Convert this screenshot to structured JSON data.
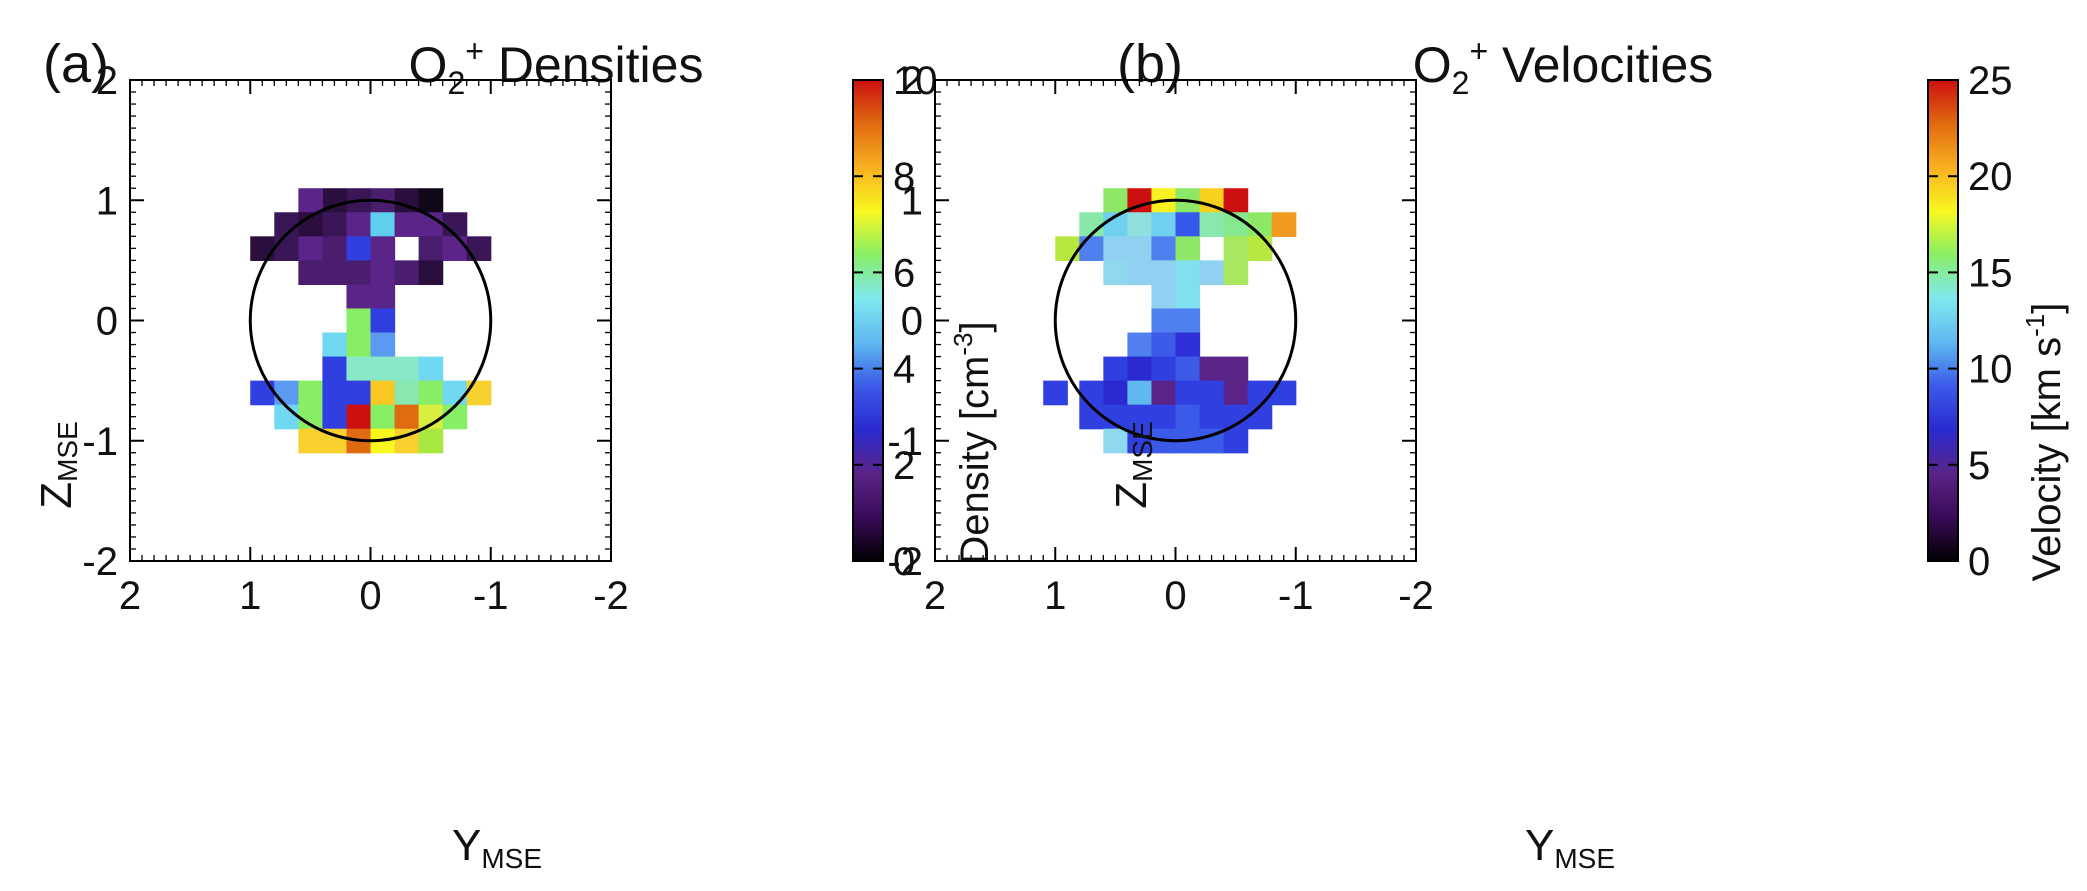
{
  "panels": [
    {
      "label": "(a)",
      "title": {
        "base": "O",
        "sub": "2",
        "sup": "+",
        "rest": " Densities"
      },
      "chart_data": {
        "type": "heatmap",
        "xlabel": {
          "base": "Y",
          "sub": "MSE"
        },
        "ylabel": {
          "base": "Z",
          "sub": "MSE"
        },
        "xlim": [
          2,
          -2
        ],
        "ylim": [
          -2,
          2
        ],
        "xticks": [
          2,
          1,
          0,
          -1,
          -2
        ],
        "xtick_labels": [
          "2",
          "1",
          "0",
          "-1",
          "-2"
        ],
        "yticks": [
          2,
          1,
          0,
          -1,
          -2
        ],
        "ytick_labels": [
          "2",
          "1",
          "0",
          "-1",
          "-2"
        ],
        "circle": {
          "center": [
            0,
            0
          ],
          "radius": 1
        },
        "cell_size": 0.2,
        "cells": [
          [
            1.0,
            -0.1,
            0.8,
            "#4a1d6e"
          ],
          [
            1.0,
            -0.3,
            0.9,
            "#2a0e3e"
          ],
          [
            1.0,
            -0.5,
            0.6,
            "#100818"
          ],
          [
            1.0,
            0.1,
            0.7,
            "#3a1656"
          ],
          [
            1.0,
            0.3,
            0.9,
            "#2a0e3e"
          ],
          [
            1.0,
            0.5,
            1.0,
            "#5a2488"
          ],
          [
            0.8,
            0.7,
            0.9,
            "#3a1656"
          ],
          [
            0.8,
            0.5,
            0.9,
            "#2a0e3e"
          ],
          [
            0.8,
            0.3,
            0.9,
            "#3a1656"
          ],
          [
            0.8,
            0.1,
            1.0,
            "#5a2488"
          ],
          [
            0.8,
            -0.1,
            3.8,
            "#5fcff0"
          ],
          [
            0.8,
            -0.3,
            1.0,
            "#5a2488"
          ],
          [
            0.8,
            -0.5,
            1.0,
            "#5a2488"
          ],
          [
            0.8,
            -0.7,
            0.9,
            "#3a1656"
          ],
          [
            0.6,
            0.9,
            0.8,
            "#2a0e3e"
          ],
          [
            0.6,
            0.7,
            0.9,
            "#3a1656"
          ],
          [
            0.6,
            0.5,
            1.0,
            "#5a2488"
          ],
          [
            0.6,
            0.3,
            1.0,
            "#4a1d6e"
          ],
          [
            0.6,
            0.1,
            2.2,
            "#3040e0"
          ],
          [
            0.6,
            -0.1,
            1.0,
            "#5a2488"
          ],
          [
            0.6,
            -0.5,
            1.0,
            "#4a1d6e"
          ],
          [
            0.6,
            -0.7,
            1.0,
            "#5a2488"
          ],
          [
            0.6,
            -0.9,
            0.9,
            "#3a1656"
          ],
          [
            0.4,
            0.5,
            1.0,
            "#4a1d6e"
          ],
          [
            0.4,
            0.3,
            1.0,
            "#4a1d6e"
          ],
          [
            0.4,
            0.1,
            1.0,
            "#4a1d6e"
          ],
          [
            0.4,
            -0.1,
            1.0,
            "#5a2488"
          ],
          [
            0.4,
            -0.3,
            1.0,
            "#4a1d6e"
          ],
          [
            0.4,
            -0.5,
            0.8,
            "#2a0e3e"
          ],
          [
            0.2,
            0.1,
            1.0,
            "#5a2488"
          ],
          [
            0.2,
            -0.1,
            1.0,
            "#5a2488"
          ],
          [
            0.0,
            0.1,
            5.0,
            "#88ee66"
          ],
          [
            0.0,
            -0.1,
            2.2,
            "#3040e0"
          ],
          [
            -0.2,
            0.3,
            4.0,
            "#70d8f0"
          ],
          [
            -0.2,
            0.1,
            5.0,
            "#88ee66"
          ],
          [
            -0.2,
            -0.1,
            3.0,
            "#5a9af0"
          ],
          [
            -0.4,
            0.3,
            2.2,
            "#3040e0"
          ],
          [
            -0.4,
            0.1,
            4.3,
            "#88e8c8"
          ],
          [
            -0.4,
            -0.1,
            4.3,
            "#88e8c8"
          ],
          [
            -0.4,
            -0.3,
            4.3,
            "#88e8c8"
          ],
          [
            -0.4,
            -0.5,
            4.0,
            "#70d8f0"
          ],
          [
            -0.6,
            0.9,
            2.2,
            "#3040e0"
          ],
          [
            -0.6,
            0.7,
            3.0,
            "#5a9af0"
          ],
          [
            -0.6,
            0.5,
            5.0,
            "#88ee66"
          ],
          [
            -0.6,
            0.3,
            2.2,
            "#3040e0"
          ],
          [
            -0.6,
            0.1,
            2.2,
            "#3040e0"
          ],
          [
            -0.6,
            -0.1,
            7.3,
            "#f8c820"
          ],
          [
            -0.6,
            -0.3,
            4.5,
            "#88e8b0"
          ],
          [
            -0.6,
            -0.5,
            5.0,
            "#88ee66"
          ],
          [
            -0.6,
            -0.7,
            4.0,
            "#70d8f0"
          ],
          [
            -0.6,
            -0.9,
            7.0,
            "#f8d030"
          ],
          [
            -0.8,
            0.7,
            4.0,
            "#70d8f0"
          ],
          [
            -0.8,
            0.5,
            5.0,
            "#88ee66"
          ],
          [
            -0.8,
            0.3,
            2.2,
            "#3040e0"
          ],
          [
            -0.8,
            0.1,
            9.6,
            "#cc1010"
          ],
          [
            -0.8,
            -0.1,
            5.0,
            "#88ee66"
          ],
          [
            -0.8,
            -0.3,
            8.2,
            "#e06a10"
          ],
          [
            -0.8,
            -0.5,
            6.2,
            "#d8ee40"
          ],
          [
            -0.8,
            -0.7,
            5.0,
            "#88ee66"
          ],
          [
            -1.0,
            0.5,
            7.0,
            "#f8d030"
          ],
          [
            -1.0,
            0.3,
            7.0,
            "#f8d030"
          ],
          [
            -1.0,
            0.1,
            8.2,
            "#e06a10"
          ],
          [
            -1.0,
            -0.1,
            7.6,
            "#f8f820"
          ],
          [
            -1.0,
            -0.3,
            7.0,
            "#f8d030"
          ],
          [
            -1.0,
            -0.5,
            5.5,
            "#a8e840"
          ]
        ],
        "colorbar": {
          "label": "Density [cm",
          "label_sup": "-3",
          "label_end": "]",
          "min": 0,
          "max": 10,
          "ticks": [
            0,
            2,
            4,
            6,
            8,
            10
          ],
          "tick_labels": [
            "0",
            "2",
            "4",
            "6",
            "8",
            "10"
          ]
        }
      }
    },
    {
      "label": "(b)",
      "title": {
        "base": "O",
        "sub": "2",
        "sup": "+",
        "rest": " Velocities"
      },
      "chart_data": {
        "type": "heatmap",
        "xlabel": {
          "base": "Y",
          "sub": "MSE"
        },
        "ylabel": {
          "base": "Z",
          "sub": "MSE"
        },
        "xlim": [
          2,
          -2
        ],
        "ylim": [
          -2,
          2
        ],
        "xticks": [
          2,
          1,
          0,
          -1,
          -2
        ],
        "xtick_labels": [
          "2",
          "1",
          "0",
          "-1",
          "-2"
        ],
        "yticks": [
          2,
          1,
          0,
          -1,
          -2
        ],
        "ytick_labels": [
          "2",
          "1",
          "0",
          "-1",
          "-2"
        ],
        "circle": {
          "center": [
            0,
            0
          ],
          "radius": 1
        },
        "cell_size": 0.2,
        "cells": [
          [
            1.0,
            0.5,
            14,
            "#8de868"
          ],
          [
            1.0,
            0.3,
            24,
            "#cc1010"
          ],
          [
            1.0,
            0.1,
            18,
            "#f8f020"
          ],
          [
            1.0,
            -0.1,
            15,
            "#8de868"
          ],
          [
            1.0,
            -0.3,
            19,
            "#f8d020"
          ],
          [
            1.0,
            -0.5,
            24,
            "#cc1010"
          ],
          [
            0.8,
            0.7,
            13,
            "#88e8a8"
          ],
          [
            0.8,
            0.5,
            9,
            "#70d0f0"
          ],
          [
            0.8,
            0.3,
            10,
            "#90e0e0"
          ],
          [
            0.8,
            0.1,
            9,
            "#70d0f0"
          ],
          [
            0.8,
            -0.1,
            6,
            "#3558e8"
          ],
          [
            0.8,
            -0.3,
            11,
            "#88e8b0"
          ],
          [
            0.8,
            -0.5,
            12,
            "#88e890"
          ],
          [
            0.8,
            -0.7,
            14,
            "#8de868"
          ],
          [
            0.8,
            -0.9,
            19,
            "#f09a20"
          ],
          [
            0.6,
            0.9,
            16,
            "#b8e840"
          ],
          [
            0.6,
            0.7,
            7,
            "#5080f0"
          ],
          [
            0.6,
            0.5,
            9,
            "#90d0f0"
          ],
          [
            0.6,
            0.3,
            9,
            "#90d0f0"
          ],
          [
            0.6,
            0.1,
            7,
            "#5080f0"
          ],
          [
            0.6,
            -0.1,
            15,
            "#8de868"
          ],
          [
            0.6,
            -0.5,
            14,
            "#a8e860"
          ],
          [
            0.6,
            -0.7,
            15,
            "#b8e840"
          ],
          [
            0.4,
            0.5,
            10,
            "#90d8f0"
          ],
          [
            0.4,
            0.3,
            9,
            "#90d0f0"
          ],
          [
            0.4,
            0.1,
            9,
            "#90d0f0"
          ],
          [
            0.4,
            -0.1,
            10,
            "#80e0f0"
          ],
          [
            0.4,
            -0.3,
            9,
            "#90d0f0"
          ],
          [
            0.4,
            -0.5,
            14,
            "#a8e860"
          ],
          [
            0.2,
            0.1,
            9,
            "#90d0f0"
          ],
          [
            0.2,
            -0.1,
            10,
            "#80e0f0"
          ],
          [
            0.0,
            0.1,
            7,
            "#5080f0"
          ],
          [
            0.0,
            -0.1,
            7,
            "#5080f0"
          ],
          [
            -0.2,
            0.3,
            7,
            "#5080f0"
          ],
          [
            -0.2,
            0.1,
            6,
            "#3b5ae8"
          ],
          [
            -0.2,
            -0.1,
            5,
            "#3030d8"
          ],
          [
            -0.4,
            0.5,
            5,
            "#3040e0"
          ],
          [
            -0.4,
            0.3,
            5,
            "#2a2ad0"
          ],
          [
            -0.4,
            0.1,
            5,
            "#3040e0"
          ],
          [
            -0.4,
            -0.1,
            6,
            "#3b5ae8"
          ],
          [
            -0.4,
            -0.3,
            3,
            "#5a2488"
          ],
          [
            -0.4,
            -0.5,
            3,
            "#5a2488"
          ],
          [
            -0.6,
            1.0,
            5,
            "#3040e0"
          ],
          [
            -0.6,
            0.7,
            5,
            "#3040e0"
          ],
          [
            -0.6,
            0.5,
            5,
            "#2a2ad0"
          ],
          [
            -0.6,
            0.3,
            9,
            "#5fb8f0"
          ],
          [
            -0.6,
            0.1,
            3,
            "#5a2488"
          ],
          [
            -0.6,
            -0.1,
            5,
            "#3040e0"
          ],
          [
            -0.6,
            -0.3,
            5,
            "#3040e0"
          ],
          [
            -0.6,
            -0.5,
            3,
            "#5a2488"
          ],
          [
            -0.6,
            -0.7,
            5,
            "#3040e0"
          ],
          [
            -0.6,
            -0.9,
            5,
            "#3040e0"
          ],
          [
            -0.8,
            0.7,
            5,
            "#3040e0"
          ],
          [
            -0.8,
            0.5,
            5,
            "#3040e0"
          ],
          [
            -0.8,
            0.3,
            5,
            "#3040e0"
          ],
          [
            -0.8,
            0.1,
            5,
            "#3040e0"
          ],
          [
            -0.8,
            -0.1,
            5,
            "#3b5ae8"
          ],
          [
            -0.8,
            -0.3,
            5,
            "#3040e0"
          ],
          [
            -0.8,
            -0.5,
            5,
            "#3040e0"
          ],
          [
            -0.8,
            -0.7,
            5,
            "#3040e0"
          ],
          [
            -1.0,
            0.5,
            9,
            "#8ed8f0"
          ],
          [
            -1.0,
            0.3,
            5,
            "#3040e0"
          ],
          [
            -1.0,
            0.1,
            5,
            "#3b5ae8"
          ],
          [
            -1.0,
            -0.1,
            5,
            "#3b5ae8"
          ],
          [
            -1.0,
            -0.3,
            5,
            "#3b5ae8"
          ],
          [
            -1.0,
            -0.5,
            5,
            "#3040e0"
          ]
        ],
        "colorbar": {
          "label": "Velocity [km s",
          "label_sup": "-1",
          "label_end": "]",
          "min": 0,
          "max": 25,
          "ticks": [
            0,
            5,
            10,
            15,
            20,
            25
          ],
          "tick_labels": [
            "0",
            "5",
            "10",
            "15",
            "20",
            "25"
          ]
        }
      }
    }
  ],
  "colormap": [
    "#000000",
    "#3a0a58",
    "#5a2488",
    "#2a2ad0",
    "#3b5ae8",
    "#5fb8f0",
    "#7fe8f0",
    "#88ee66",
    "#f8f820",
    "#f8b020",
    "#e06a10",
    "#cc1010"
  ]
}
